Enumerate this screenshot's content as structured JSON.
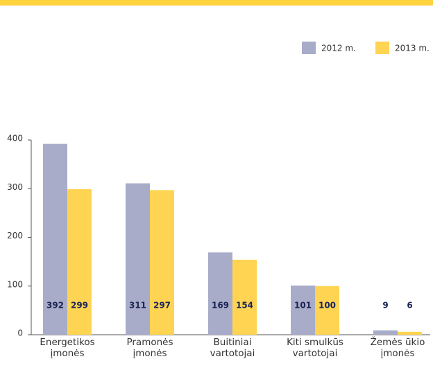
{
  "chart_data": {
    "type": "bar",
    "categories": [
      [
        "Energetikos",
        "įmonės"
      ],
      [
        "Pramonės",
        "įmonės"
      ],
      [
        "Buitiniai",
        "vartotojai"
      ],
      [
        "Kiti smulkūs",
        "vartotojai"
      ],
      [
        "Žemės ūkio",
        "įmonės"
      ]
    ],
    "series": [
      {
        "name": "2012 m.",
        "color": "#a8acc8",
        "values": [
          392,
          311,
          169,
          101,
          9
        ]
      },
      {
        "name": "2013 m.",
        "color": "#ffd452",
        "values": [
          299,
          297,
          154,
          100,
          6
        ]
      }
    ],
    "ylim": [
      0,
      400
    ],
    "yticks": [
      0,
      100,
      200,
      300,
      400
    ]
  }
}
